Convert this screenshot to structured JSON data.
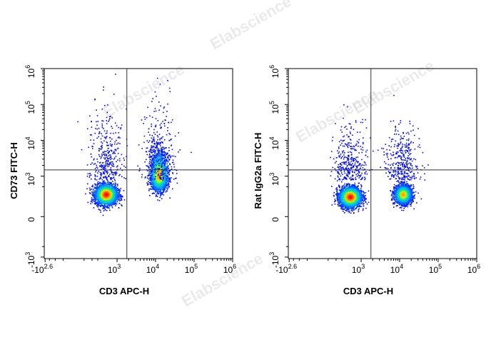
{
  "watermark": "Elabscience",
  "chart_data": [
    {
      "type": "scatter",
      "subtype": "flow-cytometry-density-dot-plot",
      "xlabel": "CD3 APC-H",
      "ylabel": "CD73 FITC-H",
      "x_scale": "biexponential",
      "y_scale": "biexponential",
      "x_ticks": [
        {
          "base": "-10",
          "exp": "2.6",
          "value": -398
        },
        {
          "base": "10",
          "exp": "3",
          "value": 1000
        },
        {
          "base": "10",
          "exp": "4",
          "value": 10000
        },
        {
          "base": "10",
          "exp": "5",
          "value": 100000
        },
        {
          "base": "10",
          "exp": "6",
          "value": 1000000
        }
      ],
      "y_ticks": [
        {
          "base": "-10",
          "exp": "3",
          "value": -1000
        },
        {
          "base": "0",
          "exp": "",
          "value": 0
        },
        {
          "base": "10",
          "exp": "3",
          "value": 1000
        },
        {
          "base": "10",
          "exp": "4",
          "value": 10000
        },
        {
          "base": "10",
          "exp": "5",
          "value": 100000
        },
        {
          "base": "10",
          "exp": "6",
          "value": 1000000
        }
      ],
      "quadrant_gate": {
        "x": 1800,
        "y": 1500
      },
      "populations": [
        {
          "x_center": 500,
          "y_center": 300,
          "relative_density": "highest",
          "note": "CD3-negative population"
        },
        {
          "x_center": 12000,
          "y_center": 1000,
          "relative_density": "high",
          "note": "CD3-positive population, extends upward"
        }
      ],
      "colormap": [
        "#0000ff",
        "#00c8ff",
        "#00ff80",
        "#ffff00",
        "#ff8000",
        "#ff0000"
      ]
    },
    {
      "type": "scatter",
      "subtype": "flow-cytometry-density-dot-plot",
      "xlabel": "CD3 APC-H",
      "ylabel": "Rat IgG2a FITC-H",
      "x_scale": "biexponential",
      "y_scale": "biexponential",
      "x_ticks": [
        {
          "base": "-10",
          "exp": "2.6",
          "value": -398
        },
        {
          "base": "10",
          "exp": "3",
          "value": 1000
        },
        {
          "base": "10",
          "exp": "4",
          "value": 10000
        },
        {
          "base": "10",
          "exp": "5",
          "value": 100000
        },
        {
          "base": "10",
          "exp": "6",
          "value": 1000000
        }
      ],
      "y_ticks": [
        {
          "base": "-10",
          "exp": "3",
          "value": -1000
        },
        {
          "base": "0",
          "exp": "",
          "value": 0
        },
        {
          "base": "10",
          "exp": "3",
          "value": 1000
        },
        {
          "base": "10",
          "exp": "4",
          "value": 10000
        },
        {
          "base": "10",
          "exp": "5",
          "value": 100000
        },
        {
          "base": "10",
          "exp": "6",
          "value": 1000000
        }
      ],
      "quadrant_gate": {
        "x": 1800,
        "y": 1500
      },
      "populations": [
        {
          "x_center": 500,
          "y_center": 250,
          "relative_density": "highest",
          "note": "CD3-negative population"
        },
        {
          "x_center": 12000,
          "y_center": 300,
          "relative_density": "high",
          "note": "CD3-positive population"
        }
      ],
      "colormap": [
        "#0000ff",
        "#00c8ff",
        "#00ff80",
        "#ffff00",
        "#ff8000",
        "#ff0000"
      ]
    }
  ]
}
